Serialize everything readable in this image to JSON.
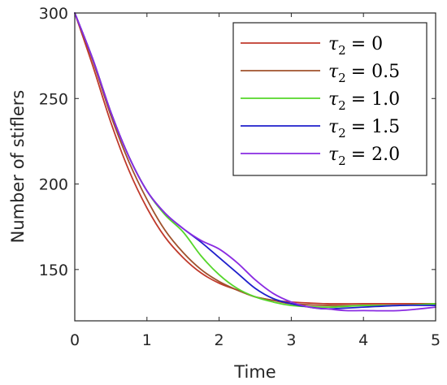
{
  "chart_data": {
    "type": "line",
    "title": "",
    "xlabel": "Time",
    "ylabel": "Number of stiflers",
    "xlim": [
      0,
      5
    ],
    "ylim": [
      120,
      300
    ],
    "xticks": [
      "0",
      "1",
      "2",
      "3",
      "4",
      "5"
    ],
    "yticks": [
      "150",
      "200",
      "250",
      "300"
    ],
    "legend_position": "top-right",
    "grid": false,
    "series": [
      {
        "name": "τ₂ = 0",
        "color": "#c0392b",
        "x": [
          0,
          0.25,
          0.5,
          0.75,
          1.0,
          1.25,
          1.5,
          1.75,
          2.0,
          2.25,
          2.5,
          2.75,
          3.0,
          3.5,
          4.0,
          4.5,
          5.0
        ],
        "y": [
          300,
          269,
          236,
          208,
          186,
          169,
          157,
          148,
          142,
          138,
          134,
          132,
          131,
          130,
          130,
          130,
          130
        ]
      },
      {
        "name": "τ₂ = 0.5",
        "color": "#a0522d",
        "x": [
          0,
          0.25,
          0.5,
          0.75,
          1.0,
          1.25,
          1.5,
          1.75,
          2.0,
          2.25,
          2.5,
          2.75,
          3.0,
          3.5,
          4.0,
          4.5,
          5.0
        ],
        "y": [
          300,
          272,
          240,
          213,
          191,
          173,
          160,
          150,
          143,
          138,
          134,
          132,
          130,
          129,
          129,
          129,
          130
        ]
      },
      {
        "name": "τ₂ = 1.0",
        "color": "#55d62a",
        "x": [
          0,
          0.25,
          0.5,
          0.75,
          1.0,
          1.25,
          1.5,
          1.75,
          2.0,
          2.25,
          2.5,
          2.75,
          3.0,
          3.5,
          4.0,
          4.5,
          5.0
        ],
        "y": [
          300,
          273,
          242,
          216,
          196,
          182,
          172,
          158,
          147,
          139,
          134,
          131,
          129,
          128,
          129,
          129,
          130
        ]
      },
      {
        "name": "τ₂ = 1.5",
        "color": "#1f1fcc",
        "x": [
          0,
          0.25,
          0.5,
          0.75,
          1.0,
          1.25,
          1.5,
          1.75,
          2.0,
          2.25,
          2.5,
          2.75,
          3.0,
          3.25,
          3.5,
          4.0,
          4.5,
          5.0
        ],
        "y": [
          300,
          273,
          242,
          216,
          196,
          183,
          174,
          166,
          157,
          148,
          139,
          133,
          130,
          128,
          127,
          128,
          129,
          129
        ]
      },
      {
        "name": "τ₂ = 2.0",
        "color": "#8a2be2",
        "x": [
          0,
          0.25,
          0.5,
          0.75,
          1.0,
          1.25,
          1.5,
          1.75,
          2.0,
          2.25,
          2.5,
          2.75,
          3.0,
          3.25,
          3.5,
          3.75,
          4.0,
          4.5,
          5.0
        ],
        "y": [
          300,
          273,
          242,
          216,
          196,
          183,
          174,
          167,
          162,
          154,
          144,
          136,
          131,
          128,
          127,
          126,
          126,
          126,
          128
        ]
      }
    ]
  },
  "legend": {
    "entries": [
      {
        "symbol": "τ",
        "sub": "2",
        "value": "= 0"
      },
      {
        "symbol": "τ",
        "sub": "2",
        "value": "= 0.5"
      },
      {
        "symbol": "τ",
        "sub": "2",
        "value": "= 1.0"
      },
      {
        "symbol": "τ",
        "sub": "2",
        "value": "= 1.5"
      },
      {
        "symbol": "τ",
        "sub": "2",
        "value": "= 2.0"
      }
    ]
  }
}
